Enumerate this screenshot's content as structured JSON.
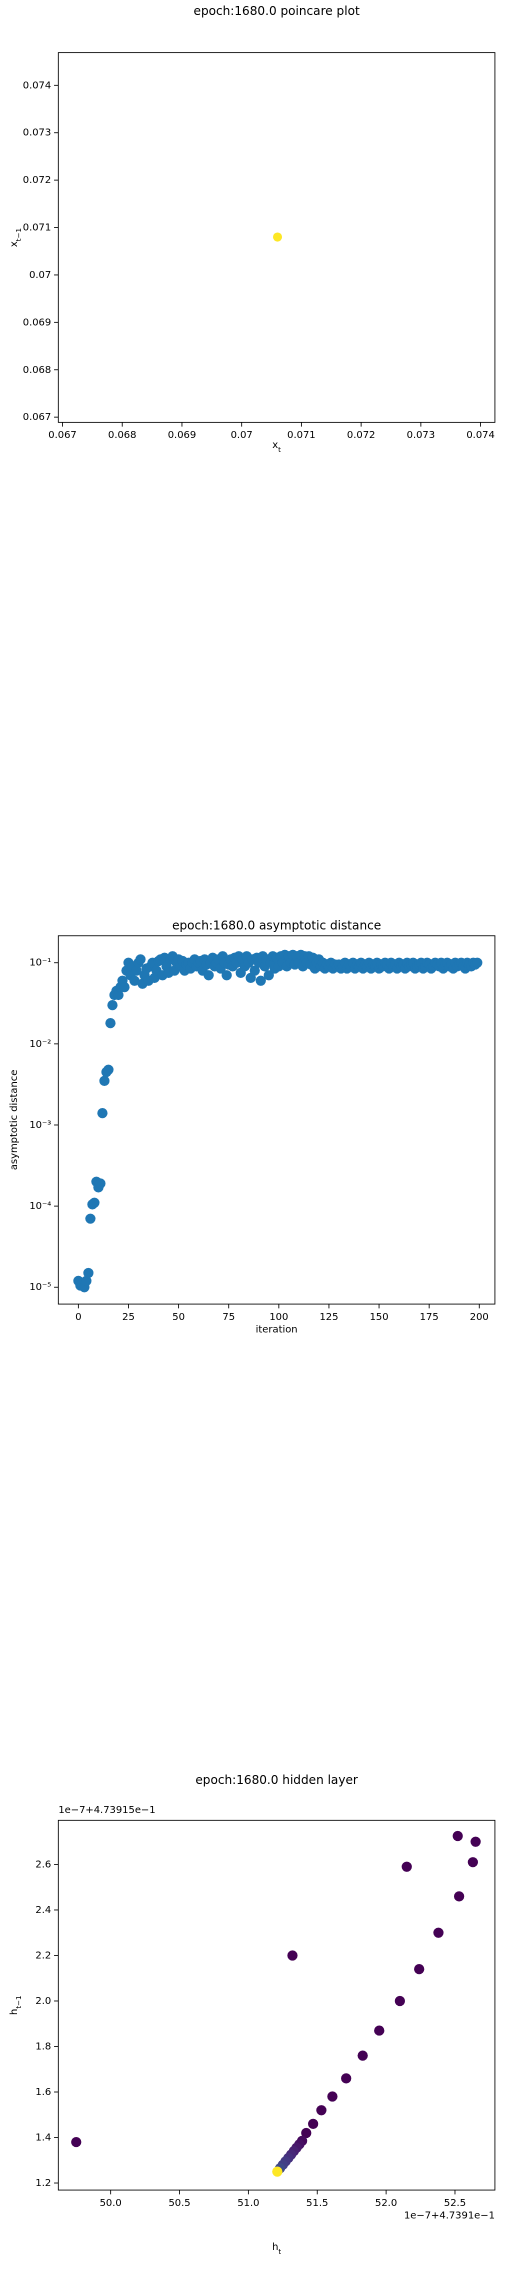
{
  "chart_data": [
    {
      "type": "scatter",
      "title": "epoch:1680.0 poincare plot",
      "xlabel": {
        "base": "x",
        "sub": "t"
      },
      "ylabel": {
        "base": "x",
        "sub": "t−1"
      },
      "x": [
        0.0706
      ],
      "y": [
        0.0708
      ],
      "color": "#fde725",
      "xlim": [
        0.06693,
        0.07424
      ],
      "ylim": [
        0.06689,
        0.07469
      ],
      "xticks": [
        0.067,
        0.068,
        0.069,
        0.07,
        0.071,
        0.072,
        0.073,
        0.074
      ],
      "yticks": [
        0.067,
        0.068,
        0.069,
        0.07,
        0.071,
        0.072,
        0.073,
        0.074
      ]
    },
    {
      "type": "scatter",
      "title": "epoch:1680.0 asymptotic distance",
      "xlabel": "iteration",
      "ylabel": "asymptotic distance",
      "yscale": "log",
      "color": "#1f77b4",
      "x": [
        0,
        1,
        2,
        3,
        4,
        5,
        6,
        7,
        8,
        9,
        10,
        11,
        12,
        13,
        14,
        15,
        16,
        17,
        18,
        19,
        20,
        21,
        22,
        23,
        24,
        25,
        26,
        27,
        28,
        29,
        30,
        31,
        32,
        33,
        34,
        35,
        36,
        37,
        38,
        39,
        40,
        41,
        42,
        43,
        44,
        45,
        46,
        47,
        48,
        49,
        50,
        51,
        52,
        53,
        54,
        55,
        56,
        57,
        58,
        59,
        60,
        61,
        62,
        63,
        64,
        65,
        66,
        67,
        68,
        69,
        70,
        71,
        72,
        73,
        74,
        75,
        76,
        77,
        78,
        79,
        80,
        81,
        82,
        83,
        84,
        85,
        86,
        87,
        88,
        89,
        90,
        91,
        92,
        93,
        94,
        95,
        96,
        97,
        98,
        99,
        100,
        101,
        102,
        103,
        104,
        105,
        106,
        107,
        108,
        109,
        110,
        111,
        112,
        113,
        114,
        115,
        116,
        117,
        118,
        119,
        120,
        121,
        122,
        123,
        124,
        125,
        126,
        127,
        128,
        129,
        130,
        131,
        132,
        133,
        134,
        135,
        136,
        137,
        138,
        139,
        140,
        141,
        142,
        143,
        144,
        145,
        146,
        147,
        148,
        149,
        150,
        151,
        152,
        153,
        154,
        155,
        156,
        157,
        158,
        159,
        160,
        161,
        162,
        163,
        164,
        165,
        166,
        167,
        168,
        169,
        170,
        171,
        172,
        173,
        174,
        175,
        176,
        177,
        178,
        179,
        180,
        181,
        182,
        183,
        184,
        185,
        186,
        187,
        188,
        189,
        190,
        191,
        192,
        193,
        194,
        195,
        196,
        197,
        198,
        199
      ],
      "y": [
        1.2e-05,
        1.05e-05,
        1.1e-05,
        1e-05,
        1.2e-05,
        1.5e-05,
        7e-05,
        0.000105,
        0.00011,
        0.0002,
        0.00017,
        0.00019,
        0.0014,
        0.0035,
        0.0045,
        0.0048,
        0.018,
        0.03,
        0.04,
        0.045,
        0.04,
        0.05,
        0.06,
        0.05,
        0.08,
        0.1,
        0.07,
        0.09,
        0.06,
        0.08,
        0.1,
        0.11,
        0.055,
        0.07,
        0.085,
        0.06,
        0.09,
        0.1,
        0.065,
        0.08,
        0.105,
        0.11,
        0.07,
        0.115,
        0.09,
        0.075,
        0.11,
        0.12,
        0.08,
        0.1,
        0.11,
        0.09,
        0.105,
        0.08,
        0.095,
        0.1,
        0.085,
        0.1,
        0.11,
        0.09,
        0.1,
        0.105,
        0.08,
        0.11,
        0.095,
        0.07,
        0.1,
        0.115,
        0.09,
        0.1,
        0.11,
        0.085,
        0.12,
        0.1,
        0.07,
        0.095,
        0.11,
        0.09,
        0.115,
        0.1,
        0.12,
        0.075,
        0.11,
        0.09,
        0.12,
        0.1,
        0.065,
        0.11,
        0.08,
        0.115,
        0.1,
        0.06,
        0.12,
        0.09,
        0.11,
        0.07,
        0.1,
        0.12,
        0.085,
        0.115,
        0.09,
        0.12,
        0.1,
        0.125,
        0.09,
        0.12,
        0.1,
        0.125,
        0.095,
        0.12,
        0.1,
        0.125,
        0.09,
        0.12,
        0.1,
        0.12,
        0.095,
        0.115,
        0.085,
        0.1,
        0.11,
        0.09,
        0.1,
        0.085,
        0.095,
        0.09,
        0.1,
        0.085,
        0.095,
        0.09,
        0.095,
        0.085,
        0.09,
        0.1,
        0.085,
        0.095,
        0.09,
        0.1,
        0.085,
        0.095,
        0.09,
        0.1,
        0.085,
        0.095,
        0.09,
        0.1,
        0.085,
        0.095,
        0.09,
        0.1,
        0.085,
        0.095,
        0.09,
        0.1,
        0.095,
        0.085,
        0.1,
        0.09,
        0.095,
        0.085,
        0.1,
        0.09,
        0.095,
        0.085,
        0.1,
        0.09,
        0.095,
        0.1,
        0.085,
        0.09,
        0.095,
        0.1,
        0.085,
        0.09,
        0.1,
        0.095,
        0.085,
        0.09,
        0.1,
        0.095,
        0.09,
        0.1,
        0.085,
        0.095,
        0.1,
        0.09,
        0.095,
        0.085,
        0.1,
        0.09,
        0.095,
        0.1,
        0.09,
        0.085,
        0.1,
        0.095,
        0.09,
        0.1,
        0.095,
        0.1
      ],
      "xlim": [
        -10,
        207.8
      ],
      "ylim": [
        6.2e-06,
        0.215
      ],
      "xticks": [
        0,
        25,
        50,
        75,
        100,
        125,
        150,
        175,
        200
      ],
      "yticks": [
        {
          "value": 1e-05,
          "label": "10⁻⁵"
        },
        {
          "value": 0.0001,
          "label": "10⁻⁴"
        },
        {
          "value": 0.001,
          "label": "10⁻³"
        },
        {
          "value": 0.01,
          "label": "10⁻²"
        },
        {
          "value": 0.1,
          "label": "10⁻¹"
        }
      ]
    },
    {
      "type": "scatter",
      "title": "epoch:1680.0 hidden layer",
      "xlabel": {
        "base": "h",
        "sub": "t"
      },
      "ylabel": {
        "base": "h",
        "sub": "t−1"
      },
      "x_offset_text": "1e−7+4.7391e−1",
      "y_offset_text": "1e−7+4.73915e−1",
      "x": [
        52.52,
        52.65,
        52.63,
        52.15,
        52.53,
        52.38,
        51.32,
        52.24,
        52.1,
        51.95,
        51.83,
        51.71,
        51.61,
        51.53,
        51.47,
        51.42,
        49.75,
        51.39,
        51.37,
        51.35,
        51.33,
        51.31,
        51.29,
        51.27,
        51.25,
        51.23,
        51.21
      ],
      "y": [
        2.725,
        2.7,
        2.61,
        2.59,
        2.46,
        2.3,
        2.2,
        2.14,
        2.0,
        1.87,
        1.76,
        1.66,
        1.58,
        1.52,
        1.46,
        1.42,
        1.38,
        1.385,
        1.37,
        1.355,
        1.34,
        1.325,
        1.31,
        1.295,
        1.28,
        1.265,
        1.25
      ],
      "colors": [
        "#440154",
        "#440154",
        "#440154",
        "#440154",
        "#440154",
        "#440154",
        "#440154",
        "#440154",
        "#440154",
        "#440154",
        "#440154",
        "#440154",
        "#440154",
        "#440154",
        "#440154",
        "#440154",
        "#440154",
        "#46085c",
        "#471063",
        "#48186a",
        "#482071",
        "#472878",
        "#46307e",
        "#443983",
        "#424086",
        "#3e4a89",
        "#fde725"
      ],
      "xlim": [
        49.62,
        52.79
      ],
      "ylim": [
        1.169,
        2.794
      ],
      "xticks": [
        {
          "value": 50,
          "label": "50.0"
        },
        50.5,
        {
          "value": 51,
          "label": "51.0"
        },
        51.5,
        {
          "value": 52,
          "label": "52.0"
        },
        52.5
      ],
      "yticks": [
        1.2,
        1.4,
        1.6,
        1.8,
        {
          "value": 2,
          "label": "2.0"
        },
        2.2,
        2.4,
        2.6
      ]
    }
  ]
}
